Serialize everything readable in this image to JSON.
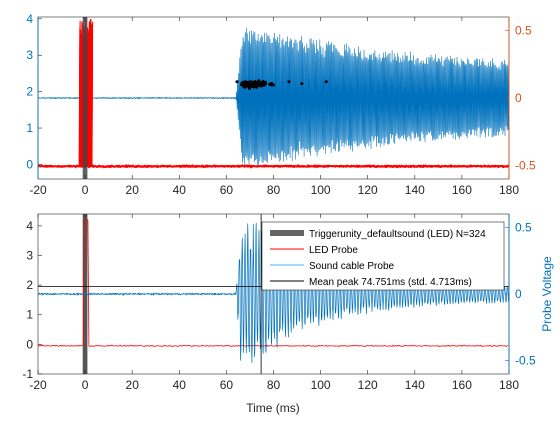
{
  "chart_data": [
    {
      "type": "line",
      "xlim": [
        -20,
        180
      ],
      "ylim_left": [
        -0.4,
        4.05
      ],
      "ylim_right": [
        -0.6,
        0.6
      ],
      "x_ticks": [
        -20,
        0,
        20,
        40,
        60,
        80,
        100,
        120,
        140,
        160,
        180
      ],
      "y_ticks_left": [
        0,
        1,
        2,
        3,
        4
      ],
      "y_ticks_right": [
        -0.5,
        0,
        0.5
      ],
      "y_tick_labels_right": [
        "-0.5",
        "0",
        "0.5"
      ],
      "series": [
        {
          "color": "#0072bd",
          "axis": "right",
          "baseline": 0,
          "onset_ms": 64,
          "peak_amplitude": 0.55,
          "envelope_end": 0.22
        },
        {
          "color": "#ff0000",
          "axis": "left",
          "baseline": -0.05,
          "pulse_start_ms": -2.5,
          "pulse_end_ms": 3,
          "pulse_peak": 4.0
        },
        {
          "color": "#000000",
          "axis": "left",
          "kind": "scatter",
          "x_range": [
            64,
            103
          ],
          "y": 2.2
        }
      ]
    },
    {
      "type": "line",
      "xlim": [
        -20,
        180
      ],
      "ylim_left": [
        -1,
        4.4
      ],
      "ylim_right": [
        -0.6,
        0.6
      ],
      "x_ticks": [
        -20,
        0,
        20,
        40,
        60,
        80,
        100,
        120,
        140,
        160,
        180
      ],
      "y_ticks_left": [
        -1,
        0,
        1,
        2,
        3,
        4
      ],
      "y_ticks_right": [
        -0.5,
        0,
        0.5
      ],
      "y_tick_labels_right": [
        "-0.5",
        "0",
        "0.5"
      ],
      "xlabel": "Time (ms)",
      "ylabel_right": "Probe Voltage",
      "mean_peak_ms": 74.751,
      "hline_y": 1.95,
      "trigger_band_ms": [
        -1,
        1
      ],
      "legend": [
        {
          "label": "Triggerunity_defaultsound (LED)  N=324",
          "color": "#666666",
          "style": "thick"
        },
        {
          "label": "LED Probe",
          "color": "#ff0000",
          "style": "line"
        },
        {
          "label": "Sound cable Probe",
          "color": "#4fb3e6",
          "style": "line"
        },
        {
          "label": "Mean peak 74.751ms (std. 4.713ms)",
          "color": "#000000",
          "style": "line"
        }
      ],
      "series": [
        {
          "name": "LED Probe",
          "color": "#ff0000",
          "baseline": -0.05
        },
        {
          "name": "Sound cable Probe",
          "color": "#0072bd",
          "baseline": 0,
          "onset_ms": 64,
          "peak_amplitude": 0.55
        }
      ]
    }
  ]
}
